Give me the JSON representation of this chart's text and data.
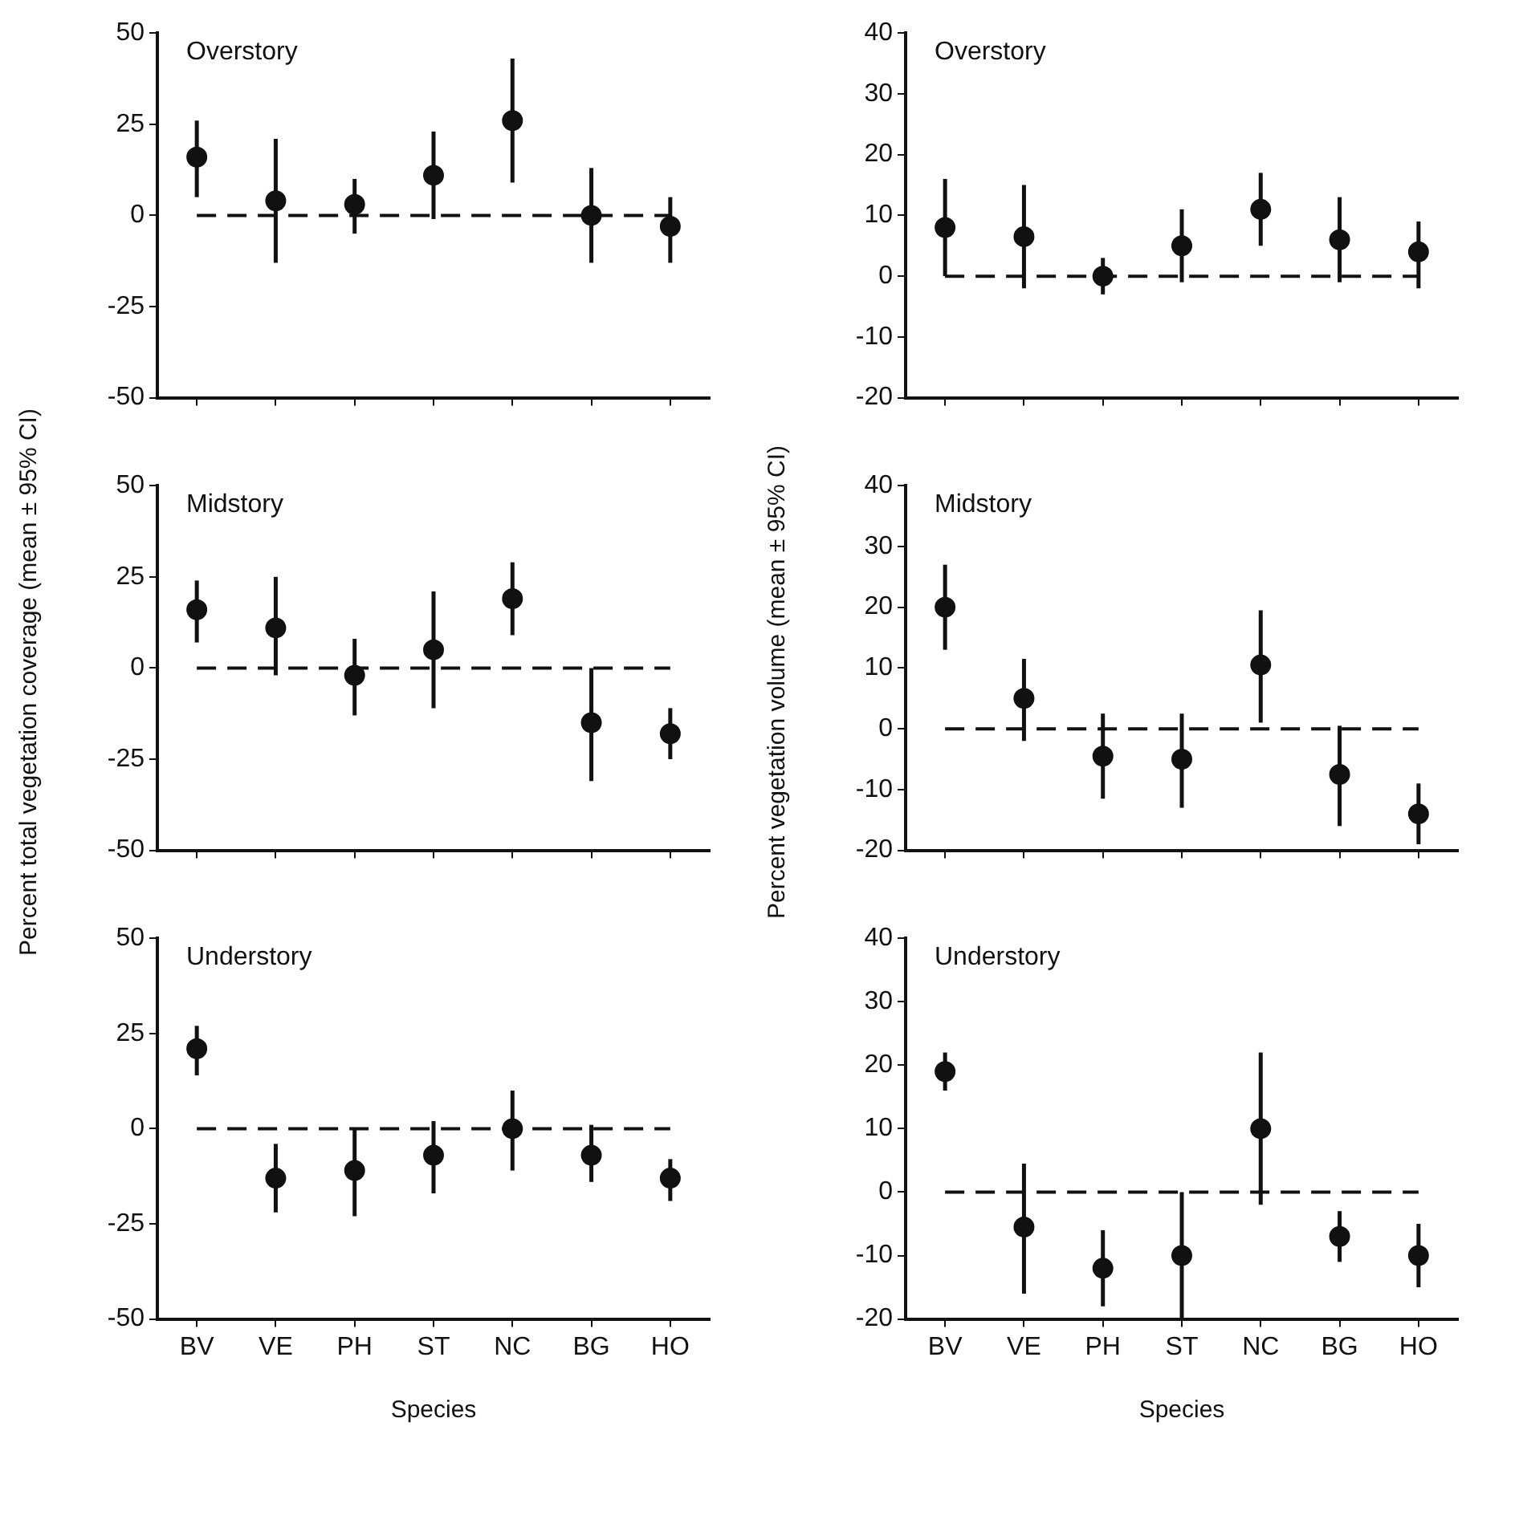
{
  "chart_data": [
    {
      "type": "scatter",
      "title": "Overstory",
      "categories": [
        null,
        null,
        null,
        null,
        null,
        null,
        null
      ],
      "marker": "circle",
      "grid": false,
      "ylim": [
        -50,
        50
      ],
      "yticks": [
        -50,
        -25,
        0,
        25,
        50
      ],
      "ref_lines": [
        {
          "axis": "y",
          "value": 0,
          "line_style": "dashed"
        }
      ],
      "series": [
        {
          "color": "#111111",
          "values": [
            16,
            4,
            3,
            11,
            26,
            0,
            -3
          ],
          "errors": [
            [
              5,
              26
            ],
            [
              -13,
              21
            ],
            [
              -5,
              10
            ],
            [
              -1,
              23
            ],
            [
              9,
              43
            ],
            [
              -13,
              13
            ],
            [
              -13,
              5
            ]
          ]
        }
      ]
    },
    {
      "type": "scatter",
      "title": "Overstory",
      "categories": [
        null,
        null,
        null,
        null,
        null,
        null,
        null
      ],
      "marker": "circle",
      "grid": false,
      "ylim": [
        -20,
        40
      ],
      "yticks": [
        -20,
        -10,
        0,
        10,
        20,
        30,
        40
      ],
      "ref_lines": [
        {
          "axis": "y",
          "value": 0,
          "line_style": "dashed"
        }
      ],
      "series": [
        {
          "color": "#111111",
          "values": [
            8,
            6.5,
            0,
            5,
            11,
            6,
            4
          ],
          "errors": [
            [
              0,
              16
            ],
            [
              -2,
              15
            ],
            [
              -3,
              3
            ],
            [
              -1,
              11
            ],
            [
              5,
              17
            ],
            [
              -1,
              13
            ],
            [
              -2,
              9
            ]
          ]
        }
      ]
    },
    {
      "type": "scatter",
      "title": "Midstory",
      "ylabel": "Percent total vegetation coverage (mean ± 95% CI)",
      "categories": [
        null,
        null,
        null,
        null,
        null,
        null,
        null
      ],
      "marker": "circle",
      "grid": false,
      "ylim": [
        -50,
        50
      ],
      "yticks": [
        -50,
        -25,
        0,
        25,
        50
      ],
      "ref_lines": [
        {
          "axis": "y",
          "value": 0,
          "line_style": "dashed"
        }
      ],
      "series": [
        {
          "color": "#111111",
          "values": [
            16,
            11,
            -2,
            5,
            19,
            -15,
            -18
          ],
          "errors": [
            [
              7,
              24
            ],
            [
              -2,
              25
            ],
            [
              -13,
              8
            ],
            [
              -11,
              21
            ],
            [
              9,
              29
            ],
            [
              -31,
              0
            ],
            [
              -25,
              -11
            ]
          ]
        }
      ]
    },
    {
      "type": "scatter",
      "title": "Midstory",
      "ylabel": "Percent vegetation volume (mean ± 95% CI)",
      "categories": [
        null,
        null,
        null,
        null,
        null,
        null,
        null
      ],
      "marker": "circle",
      "grid": false,
      "ylim": [
        -20,
        40
      ],
      "yticks": [
        -20,
        -10,
        0,
        10,
        20,
        30,
        40
      ],
      "ref_lines": [
        {
          "axis": "y",
          "value": 0,
          "line_style": "dashed"
        }
      ],
      "series": [
        {
          "color": "#111111",
          "values": [
            20,
            5,
            -4.5,
            -5,
            10.5,
            -7.5,
            -14
          ],
          "errors": [
            [
              13,
              27
            ],
            [
              -2,
              11.5
            ],
            [
              -11.5,
              2.5
            ],
            [
              -13,
              2.5
            ],
            [
              1,
              19.5
            ],
            [
              -16,
              0.5
            ],
            [
              -19,
              -9
            ]
          ]
        }
      ]
    },
    {
      "type": "scatter",
      "title": "Understory",
      "xlabel": "Species",
      "categories": [
        "BV",
        "VE",
        "PH",
        "ST",
        "NC",
        "BG",
        "HO"
      ],
      "marker": "circle",
      "grid": false,
      "ylim": [
        -50,
        50
      ],
      "yticks": [
        -50,
        -25,
        0,
        25,
        50
      ],
      "ref_lines": [
        {
          "axis": "y",
          "value": 0,
          "line_style": "dashed"
        }
      ],
      "series": [
        {
          "color": "#111111",
          "values": [
            21,
            -13,
            -11,
            -7,
            0,
            -7,
            -13
          ],
          "errors": [
            [
              14,
              27
            ],
            [
              -22,
              -4
            ],
            [
              -23,
              0
            ],
            [
              -17,
              2
            ],
            [
              -11,
              10
            ],
            [
              -14,
              1
            ],
            [
              -19,
              -8
            ]
          ]
        }
      ]
    },
    {
      "type": "scatter",
      "title": "Understory",
      "xlabel": "Species",
      "categories": [
        "BV",
        "VE",
        "PH",
        "ST",
        "NC",
        "BG",
        "HO"
      ],
      "marker": "circle",
      "grid": false,
      "ylim": [
        -20,
        40
      ],
      "yticks": [
        -20,
        -10,
        0,
        10,
        20,
        30,
        40
      ],
      "ref_lines": [
        {
          "axis": "y",
          "value": 0,
          "line_style": "dashed"
        }
      ],
      "series": [
        {
          "color": "#111111",
          "values": [
            19,
            -5.5,
            -12,
            -10,
            10,
            -7,
            -10
          ],
          "errors": [
            [
              16,
              22
            ],
            [
              -16,
              4.5
            ],
            [
              -18,
              -6
            ],
            [
              -20,
              0
            ],
            [
              -2,
              22
            ],
            [
              -11,
              -3
            ],
            [
              -15,
              -5
            ]
          ]
        }
      ]
    }
  ]
}
